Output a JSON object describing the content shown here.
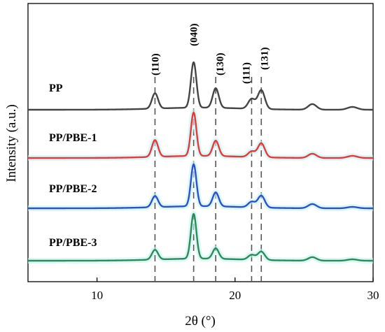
{
  "chart_data": {
    "type": "line",
    "title": "",
    "xlabel": "2θ (°)",
    "ylabel": "Intensity (a.u.)",
    "xlim": [
      5,
      30
    ],
    "xticks": [
      10,
      20,
      30
    ],
    "grid": false,
    "legend": "inline labels",
    "peaks": [
      {
        "label": "(110)",
        "x": 14.2
      },
      {
        "label": "(040)",
        "x": 17.0
      },
      {
        "label": "(130)",
        "x": 18.6
      },
      {
        "label": "(111)",
        "x": 21.2
      },
      {
        "label": "(131)",
        "x": 21.9
      }
    ],
    "series": [
      {
        "name": "PP",
        "color": "#444444",
        "baseline": 3.0,
        "peak_heights": [
          22,
          65,
          28,
          14,
          27,
          8,
          4
        ],
        "x": [
          5,
          10,
          12,
          13,
          14.2,
          15,
          16,
          17.0,
          17.8,
          18.6,
          19.5,
          20.5,
          21.2,
          21.6,
          21.9,
          23,
          25.6,
          27,
          30
        ]
      },
      {
        "name": "PP/PBE-1",
        "color": "#e8383d",
        "baseline": 2.0,
        "peak_heights": [
          24,
          62,
          22,
          8,
          20,
          6,
          3
        ],
        "x": [
          5,
          10,
          12,
          13,
          14.2,
          15,
          16,
          17.0,
          17.8,
          18.6,
          19.5,
          20.5,
          21.2,
          21.6,
          21.9,
          23,
          25.6,
          27,
          30
        ]
      },
      {
        "name": "PP/PBE-2",
        "color": "#2f4fd1",
        "baseline": 1.0,
        "peak_heights": [
          16,
          60,
          20,
          8,
          17,
          6,
          2
        ],
        "x": [
          5,
          10,
          12,
          13,
          14.2,
          15,
          16,
          17.0,
          17.8,
          18.6,
          19.5,
          20.5,
          21.2,
          21.6,
          21.9,
          23,
          25.6,
          27,
          30
        ]
      },
      {
        "name": "PP/PBE-3",
        "color": "#2e8b57",
        "baseline": 0.0,
        "peak_heights": [
          14,
          64,
          15,
          7,
          12,
          5,
          2
        ],
        "x": [
          5,
          10,
          12,
          13,
          14.2,
          15,
          16,
          17.0,
          17.8,
          18.6,
          19.5,
          20.5,
          21.2,
          21.6,
          21.9,
          23,
          25.6,
          27,
          30
        ]
      }
    ]
  }
}
